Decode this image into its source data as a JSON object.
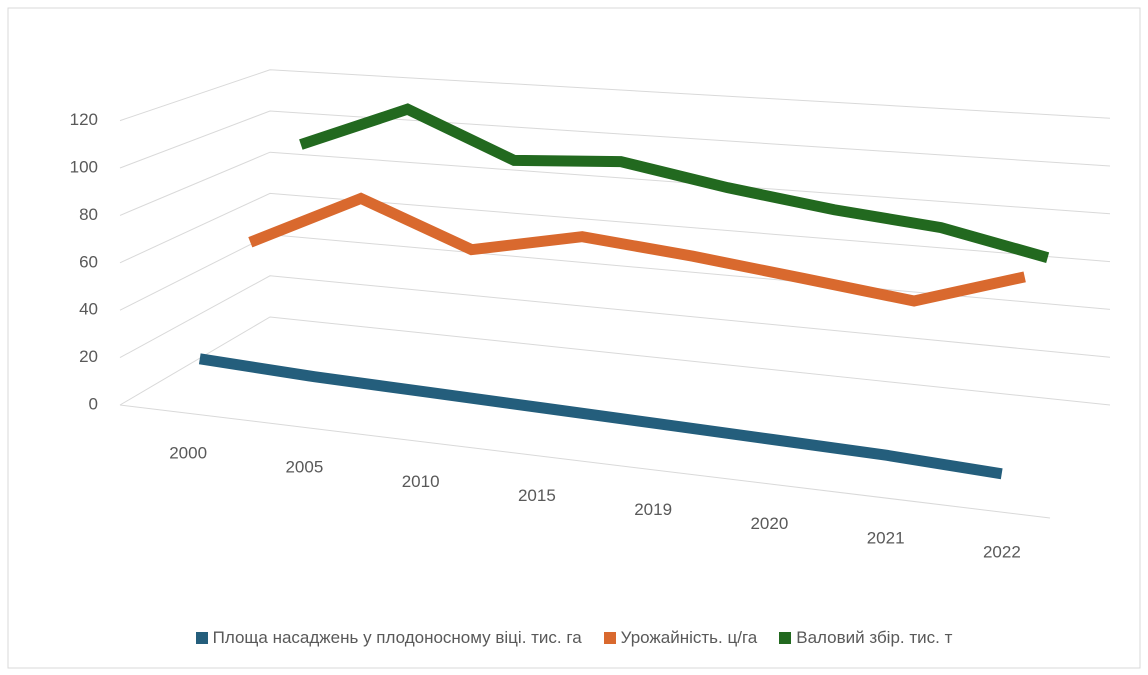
{
  "chart_data": {
    "type": "line3d",
    "categories": [
      "2000",
      "2005",
      "2010",
      "2015",
      "2019",
      "2020",
      "2021",
      "2022"
    ],
    "series": [
      {
        "name": "Площа насаджень у плодоносному віці. тис. га",
        "color": "#245e7c",
        "values": [
          17,
          15,
          14,
          13,
          12,
          11,
          10,
          8
        ]
      },
      {
        "name": "Урожайність. ц/га",
        "color": "#d9692e",
        "values": [
          56,
          80,
          62,
          72,
          68,
          63,
          58,
          72
        ]
      },
      {
        "name": "Валовий збір. тис. т",
        "color": "#22691f",
        "values": [
          90,
          110,
          90,
          93,
          85,
          79,
          75,
          66
        ]
      }
    ],
    "ylim": [
      0,
      120
    ],
    "yticks": [
      0,
      20,
      40,
      60,
      80,
      100,
      120
    ],
    "grid": true
  }
}
